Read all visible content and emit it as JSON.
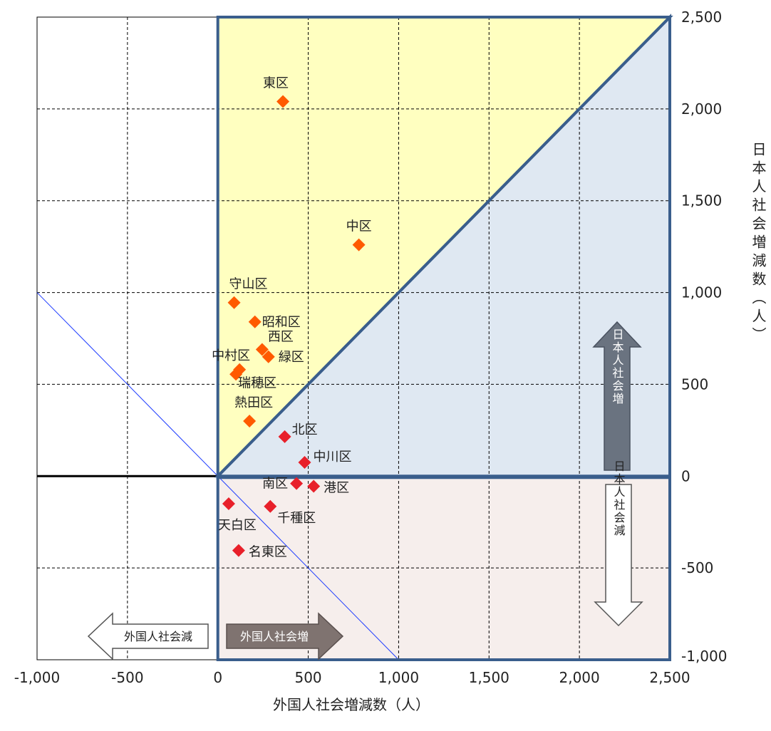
{
  "chart_data": {
    "type": "scatter",
    "xlabel": "外国人社会増減数（人）",
    "ylabel": "日本人社会増減数（人）",
    "xlim": [
      -1000,
      2500
    ],
    "ylim": [
      -1000,
      2500
    ],
    "x_ticks": [
      "-1,000",
      "-500",
      "0",
      "500",
      "1,000",
      "1,500",
      "2,000",
      "2,500"
    ],
    "y_ticks": [
      "-1,000",
      "-500",
      "0",
      "500",
      "1,000",
      "1,500",
      "2,000",
      "2,500"
    ],
    "grid": true,
    "points": [
      {
        "label": "東区",
        "x": 360,
        "y": 2040,
        "color": "#ff5a00"
      },
      {
        "label": "中区",
        "x": 780,
        "y": 1260,
        "color": "#ff5a00"
      },
      {
        "label": "守山区",
        "x": 90,
        "y": 945,
        "color": "#ff5a00"
      },
      {
        "label": "昭和区",
        "x": 205,
        "y": 840,
        "color": "#ff5a00"
      },
      {
        "label": "西区",
        "x": 245,
        "y": 690,
        "color": "#ff5a00"
      },
      {
        "label": "緑区",
        "x": 280,
        "y": 650,
        "color": "#ff5a00"
      },
      {
        "label": "中村区",
        "x": 120,
        "y": 580,
        "color": "#ff5a00"
      },
      {
        "label": "瑞穂区",
        "x": 100,
        "y": 555,
        "color": "#ff5a00"
      },
      {
        "label": "熱田区",
        "x": 175,
        "y": 300,
        "color": "#ff5a00"
      },
      {
        "label": "北区",
        "x": 370,
        "y": 215,
        "color": "#e8202a"
      },
      {
        "label": "中川区",
        "x": 480,
        "y": 75,
        "color": "#e8202a"
      },
      {
        "label": "南区",
        "x": 435,
        "y": -40,
        "color": "#e8202a"
      },
      {
        "label": "港区",
        "x": 530,
        "y": -55,
        "color": "#e8202a"
      },
      {
        "label": "天白区",
        "x": 60,
        "y": -150,
        "color": "#e8202a"
      },
      {
        "label": "千種区",
        "x": 290,
        "y": -165,
        "color": "#e8202a"
      },
      {
        "label": "名東区",
        "x": 115,
        "y": -405,
        "color": "#e8202a"
      }
    ],
    "annotations": {
      "japanese_increase": "日本人社会増",
      "japanese_decrease": "日本人社会減",
      "foreign_increase": "外国人社会増",
      "foreign_decrease": "外国人社会減"
    },
    "colors": {
      "upper_left_region": "#ffffc0",
      "lower_right_region": "#dfe8f2",
      "bottom_region": "#f6eeec",
      "region_border": "#3a5e8c",
      "guide_line": "#1f3dff"
    }
  }
}
